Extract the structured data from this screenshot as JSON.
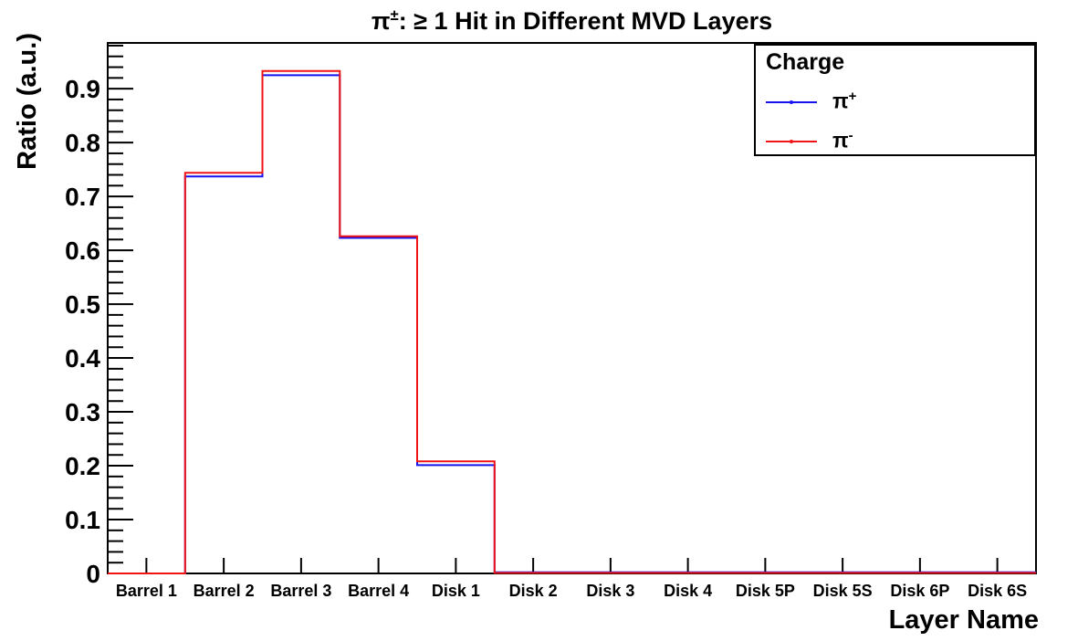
{
  "title": {
    "base": "π",
    "sup": "±",
    "rest": ": ≥ 1 Hit in Different MVD Layers"
  },
  "axes": {
    "x_title": "Layer Name",
    "y_title": "Ratio (a.u.)",
    "y_tick_labels": [
      "0",
      "0.1",
      "0.2",
      "0.3",
      "0.4",
      "0.5",
      "0.6",
      "0.7",
      "0.8",
      "0.9"
    ],
    "y_minor_step": 0.02
  },
  "legend": {
    "title": "Charge",
    "entries": [
      {
        "base": "π",
        "sup": "+",
        "color": "#1414f0"
      },
      {
        "base": "π",
        "sup": "-",
        "color": "#f01414"
      }
    ]
  },
  "chart_data": {
    "type": "step-histogram",
    "title": "π±: ≥ 1 Hit in Different MVD Layers",
    "xlabel": "Layer Name",
    "ylabel": "Ratio (a.u.)",
    "categories": [
      "Barrel 1",
      "Barrel 2",
      "Barrel 3",
      "Barrel 4",
      "Disk 1",
      "Disk 2",
      "Disk 3",
      "Disk 4",
      "Disk 5P",
      "Disk 5S",
      "Disk 6P",
      "Disk 6S"
    ],
    "series": [
      {
        "name": "π+",
        "color": "#1414f0",
        "values": [
          0,
          0.737,
          0.925,
          0.623,
          0.201,
          0.002,
          0.002,
          0.002,
          0.002,
          0.002,
          0.002,
          0.002
        ]
      },
      {
        "name": "π-",
        "color": "#f01414",
        "values": [
          0,
          0.744,
          0.933,
          0.626,
          0.208,
          0.001,
          0.001,
          0.001,
          0.001,
          0.001,
          0.001,
          0.001
        ]
      }
    ],
    "ylim": [
      0,
      0.985
    ],
    "grid": false,
    "legend_position": "top-right"
  }
}
